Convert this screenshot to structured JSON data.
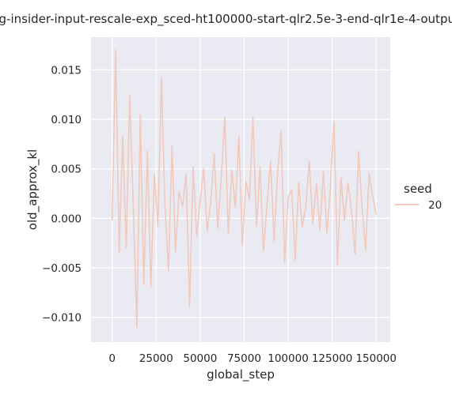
{
  "chart_data": {
    "type": "line",
    "title": "ng-insider-input-rescale-exp_sced-ht100000-start-qlr2.5e-3-end-qlr1e-4-outpu",
    "xlabel": "global_step",
    "ylabel": "old_approx_kl",
    "xlim": [
      -12000,
      158000
    ],
    "ylim": [
      -0.0125,
      0.0183
    ],
    "xticks": [
      0,
      25000,
      50000,
      75000,
      100000,
      125000,
      150000
    ],
    "xtick_labels": [
      "0",
      "25000",
      "50000",
      "75000",
      "100000",
      "125000",
      "150000"
    ],
    "yticks": [
      -0.01,
      -0.005,
      0.0,
      0.005,
      0.01,
      0.015
    ],
    "ytick_labels": [
      "−0.010",
      "−0.005",
      "0.000",
      "0.005",
      "0.010",
      "0.015"
    ],
    "grid": true,
    "legend": {
      "title": "seed",
      "placement": "right"
    },
    "colors": {
      "background": "#eaeaf2",
      "grid": "#ffffff",
      "series": "#f1c9bd"
    },
    "series": [
      {
        "name": "20",
        "x": [
          0,
          2000,
          4000,
          6000,
          8000,
          10000,
          12000,
          14000,
          16000,
          18000,
          20000,
          22000,
          24000,
          26000,
          28000,
          30000,
          32000,
          34000,
          36000,
          38000,
          40000,
          42000,
          44000,
          46000,
          48000,
          50000,
          52000,
          54000,
          56000,
          58000,
          60000,
          62000,
          64000,
          66000,
          68000,
          70000,
          72000,
          74000,
          76000,
          78000,
          80000,
          82000,
          84000,
          86000,
          88000,
          90000,
          92000,
          94000,
          96000,
          98000,
          100000,
          102000,
          104000,
          106000,
          108000,
          110000,
          112000,
          114000,
          116000,
          118000,
          120000,
          122000,
          124000,
          126000,
          128000,
          130000,
          132000,
          134000,
          136000,
          138000,
          140000,
          142000,
          144000,
          146000,
          148000,
          150000
        ],
        "y": [
          -0.0002,
          0.017,
          -0.0035,
          0.0083,
          -0.003,
          0.0125,
          0.0012,
          -0.011,
          0.0105,
          -0.0067,
          0.0068,
          -0.0069,
          0.0044,
          -0.0008,
          0.0142,
          0.0012,
          -0.0053,
          0.0073,
          -0.0034,
          0.0027,
          0.0012,
          0.0045,
          -0.0089,
          0.0052,
          -0.0018,
          0.0018,
          0.005,
          -0.0013,
          0.0017,
          0.0065,
          -0.001,
          0.0042,
          0.0102,
          -0.0016,
          0.0049,
          0.0011,
          0.0083,
          -0.0027,
          0.0037,
          0.0019,
          0.0102,
          -0.0008,
          0.0052,
          -0.0033,
          0.0014,
          0.0058,
          -0.0023,
          0.0046,
          0.0088,
          -0.0045,
          0.0021,
          0.0029,
          -0.0042,
          0.0036,
          -0.0009,
          0.0012,
          0.0058,
          -0.0006,
          0.0035,
          -0.0012,
          0.0047,
          -0.0015,
          0.0032,
          0.0098,
          -0.0047,
          0.0041,
          -0.0002,
          0.0036,
          0.0008,
          -0.0036,
          0.0068,
          0.0011,
          -0.0032,
          0.0045,
          0.0022,
          0.0004
        ]
      }
    ]
  }
}
